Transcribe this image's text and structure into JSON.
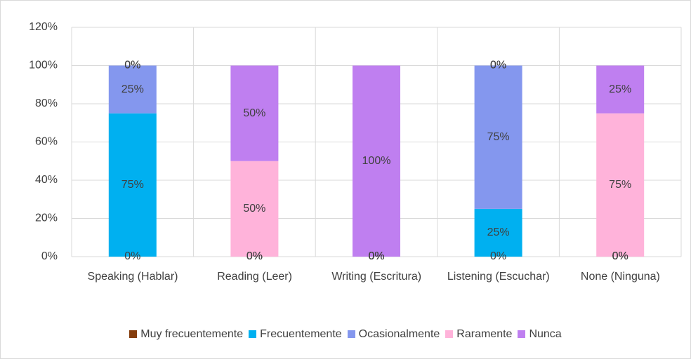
{
  "chart_data": {
    "type": "stacked_bar",
    "categories": [
      "Speaking (Hablar)",
      "Reading (Leer)",
      "Writing (Escritura)",
      "Listening (Escuchar)",
      "None (Ninguna)"
    ],
    "series": [
      {
        "name": "Muy frecuentemente",
        "color": "#843c0c",
        "values": [
          0,
          0,
          0,
          0,
          0
        ],
        "value_labels": [
          "0%",
          "0%",
          "0%",
          "0%",
          "0%"
        ]
      },
      {
        "name": "Frecuentemente",
        "color": "#00b0f0",
        "values": [
          75,
          0,
          0,
          25,
          0
        ],
        "value_labels": [
          "75%",
          "0%",
          "0%",
          "25%",
          "0%"
        ]
      },
      {
        "name": "Ocasionalmente",
        "color": "#8497ee",
        "values": [
          25,
          0,
          0,
          75,
          0
        ],
        "value_labels": [
          "25%",
          "0%",
          "0%",
          "75%",
          "0%"
        ]
      },
      {
        "name": "Raramente",
        "color": "#ffb3da",
        "values": [
          0,
          50,
          0,
          0,
          75
        ],
        "value_labels": [
          "0%",
          "50%",
          "0%",
          "0%",
          "75%"
        ]
      },
      {
        "name": "Nunca",
        "color": "#bf7ff0",
        "values": [
          0,
          50,
          100,
          0,
          25
        ],
        "value_labels": [
          "0%",
          "50%",
          "100%",
          "0%",
          "25%"
        ]
      }
    ],
    "ylim": [
      0,
      120
    ],
    "yticks": [
      {
        "value": 0,
        "label": "0%"
      },
      {
        "value": 20,
        "label": "20%"
      },
      {
        "value": 40,
        "label": "40%"
      },
      {
        "value": 60,
        "label": "60%"
      },
      {
        "value": 80,
        "label": "80%"
      },
      {
        "value": 100,
        "label": "100%"
      },
      {
        "value": 120,
        "label": "120%"
      }
    ],
    "grid": true,
    "legend": "bottom"
  }
}
